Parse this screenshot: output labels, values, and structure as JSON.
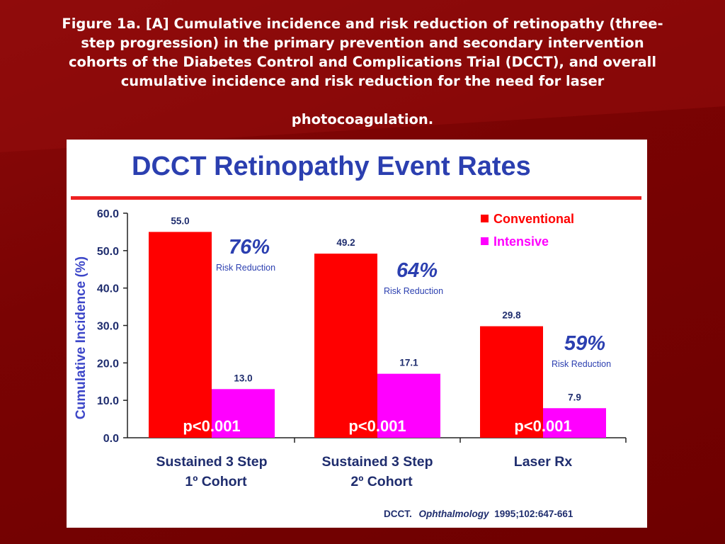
{
  "caption": {
    "line1": "Figure 1a. [A] Cumulative incidence and risk reduction of retinopathy (three-",
    "line2": "step progression) in the primary prevention and secondary intervention",
    "line3": "cohorts of the Diabetes Control and Complications Trial (DCCT), and overall",
    "line4": "cumulative incidence and risk reduction for the need for laser",
    "line5": "photocoagulation."
  },
  "colors": {
    "background": "#7a0303",
    "title_blue": "#2b3fb0",
    "rule_red": "#ee2020",
    "conventional": "#ff0000",
    "intensive": "#ff00ff",
    "axis_blue": "#3c46c8",
    "text_dark": "#1f2d6e"
  },
  "chart_data": {
    "type": "bar",
    "title": "DCCT Retinopathy Event Rates",
    "ylabel": "Cumulative Incidence (%)",
    "xlabel": "",
    "ylim": [
      0,
      60
    ],
    "yticks": [
      "0.0",
      "10.0",
      "20.0",
      "30.0",
      "40.0",
      "50.0",
      "60.0"
    ],
    "grid": false,
    "legend_position": "top-right",
    "categories": [
      {
        "line1": "Sustained 3 Step",
        "line2": "1º Cohort"
      },
      {
        "line1": "Sustained 3 Step",
        "line2": "2º Cohort"
      },
      {
        "line1": "Laser Rx",
        "line2": ""
      }
    ],
    "series": [
      {
        "name": "Conventional",
        "color": "#ff0000",
        "values": [
          55.0,
          49.2,
          29.8
        ],
        "labels": [
          "55.0",
          "49.2",
          "29.8"
        ]
      },
      {
        "name": "Intensive",
        "color": "#ff00ff",
        "values": [
          13.0,
          17.1,
          7.9
        ],
        "labels": [
          "13.0",
          "17.1",
          "7.9"
        ]
      }
    ],
    "risk_reduction": [
      {
        "percent": "76%",
        "label": "Risk Reduction"
      },
      {
        "percent": "64%",
        "label": "Risk Reduction"
      },
      {
        "percent": "59%",
        "label": "Risk Reduction"
      }
    ],
    "p_values": [
      "p<0.001",
      "p<0.001",
      "p<0.001"
    ],
    "citation": {
      "author": "DCCT.",
      "journal": "Ophthalmology",
      "details": "1995;102:647-661"
    }
  }
}
